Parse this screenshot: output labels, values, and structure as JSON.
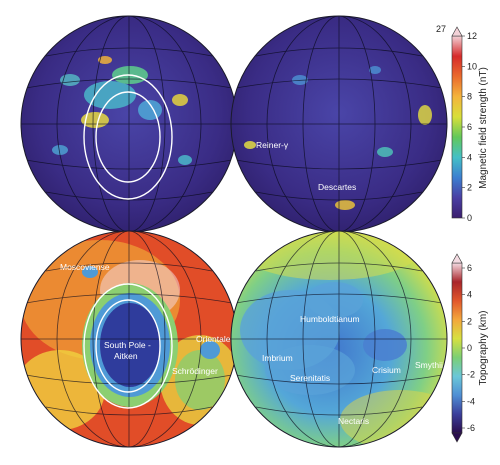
{
  "maps": [
    {
      "layer": "magnetic",
      "hemispheres": [
        {
          "side": "left",
          "labels": []
        },
        {
          "side": "right",
          "labels": [
            {
              "text": "Reiner-γ",
              "name": "label-reiner-gamma"
            },
            {
              "text": "Descartes",
              "name": "label-descartes"
            }
          ]
        }
      ]
    },
    {
      "layer": "topography",
      "hemispheres": [
        {
          "side": "left",
          "labels": [
            {
              "text": "Moscoviense",
              "name": "label-moscoviense"
            },
            {
              "text": "South Pole -",
              "name": "label-south-pole"
            },
            {
              "text": "Aitken",
              "name": "label-aitken"
            },
            {
              "text": "Orientale",
              "name": "label-orientale"
            },
            {
              "text": "Schrödinger",
              "name": "label-schrodinger"
            }
          ]
        },
        {
          "side": "right",
          "labels": [
            {
              "text": "Humboldtianum",
              "name": "label-humboldtianum"
            },
            {
              "text": "Imbrium",
              "name": "label-imbrium"
            },
            {
              "text": "Serenitatis",
              "name": "label-serenitatis"
            },
            {
              "text": "Crisium",
              "name": "label-crisium"
            },
            {
              "text": "Smythii",
              "name": "label-smythii"
            },
            {
              "text": "Nectaris",
              "name": "label-nectaris"
            }
          ]
        }
      ]
    }
  ],
  "colorbars": {
    "magnetic": {
      "title": "Magnetic field strength (nT)",
      "ticks": [
        "0",
        "2",
        "4",
        "6",
        "8",
        "10",
        "12"
      ],
      "max_note": "27",
      "stops": [
        "#3b1e6e",
        "#4a3fa3",
        "#3c7fd0",
        "#44c0c6",
        "#63c85a",
        "#d8df3a",
        "#f4b43c",
        "#ea6a2c",
        "#d62a2a",
        "#f3d2d8"
      ]
    },
    "topography": {
      "title": "Topography (km)",
      "ticks": [
        "6",
        "4",
        "2",
        "0",
        "-2",
        "-4",
        "-6"
      ],
      "stops": [
        "#2a0d4e",
        "#3b3f9b",
        "#4f8fd4",
        "#6bc7d8",
        "#7ccf74",
        "#d7e040",
        "#f3a73c",
        "#e1572b",
        "#a8252b",
        "#f4dbe2"
      ]
    }
  }
}
